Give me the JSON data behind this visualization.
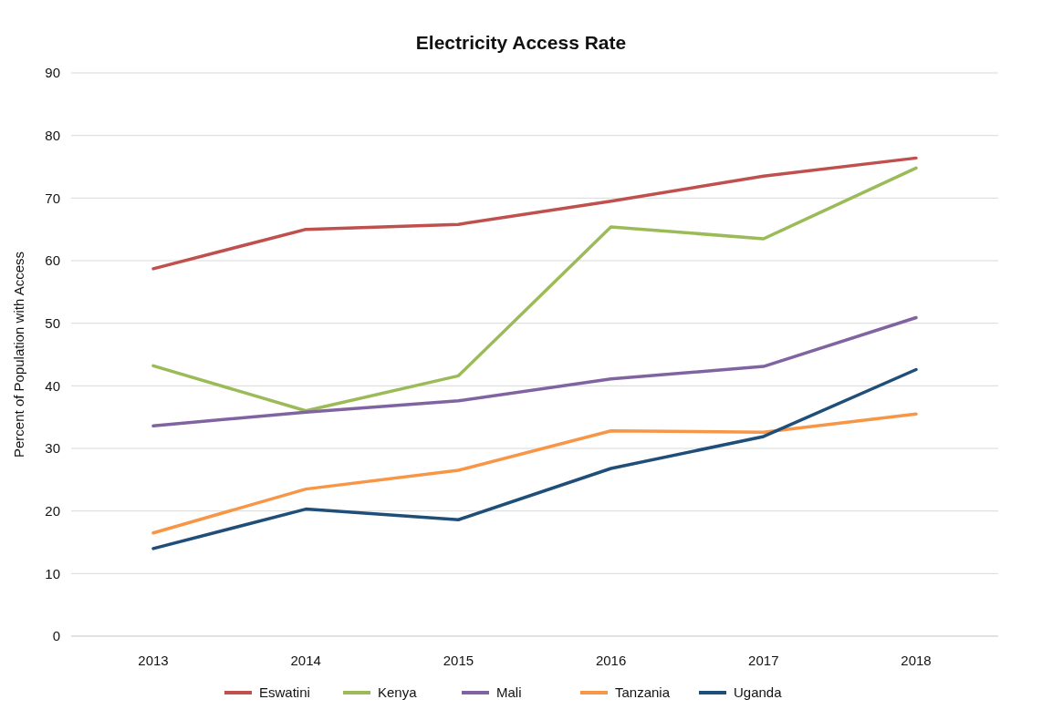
{
  "chart_data": {
    "type": "line",
    "title": "Electricity Access Rate",
    "ylabel": "Percent of Population with Access",
    "categories": [
      "2013",
      "2014",
      "2015",
      "2016",
      "2017",
      "2018"
    ],
    "series": [
      {
        "name": "Eswatini",
        "color": "#c0504d",
        "values": [
          58.7,
          65.0,
          65.8,
          69.5,
          73.5,
          76.4
        ]
      },
      {
        "name": "Kenya",
        "color": "#9bbb59",
        "values": [
          43.2,
          36.0,
          41.6,
          65.4,
          63.5,
          74.8
        ]
      },
      {
        "name": "Mali",
        "color": "#8064a2",
        "values": [
          33.6,
          35.8,
          37.6,
          41.1,
          43.1,
          50.9
        ]
      },
      {
        "name": "Tanzania",
        "color": "#f79646",
        "values": [
          16.5,
          23.5,
          26.5,
          32.8,
          32.6,
          35.5
        ]
      },
      {
        "name": "Uganda",
        "color": "#1f4e79",
        "values": [
          14.0,
          20.3,
          18.6,
          26.8,
          31.9,
          42.6
        ]
      }
    ],
    "ylim": [
      0,
      90
    ],
    "yticks": [
      0,
      10,
      20,
      30,
      40,
      50,
      60,
      70,
      80,
      90
    ],
    "grid": "y",
    "legend": "bottom",
    "marker": "none",
    "line_style": "solid"
  }
}
